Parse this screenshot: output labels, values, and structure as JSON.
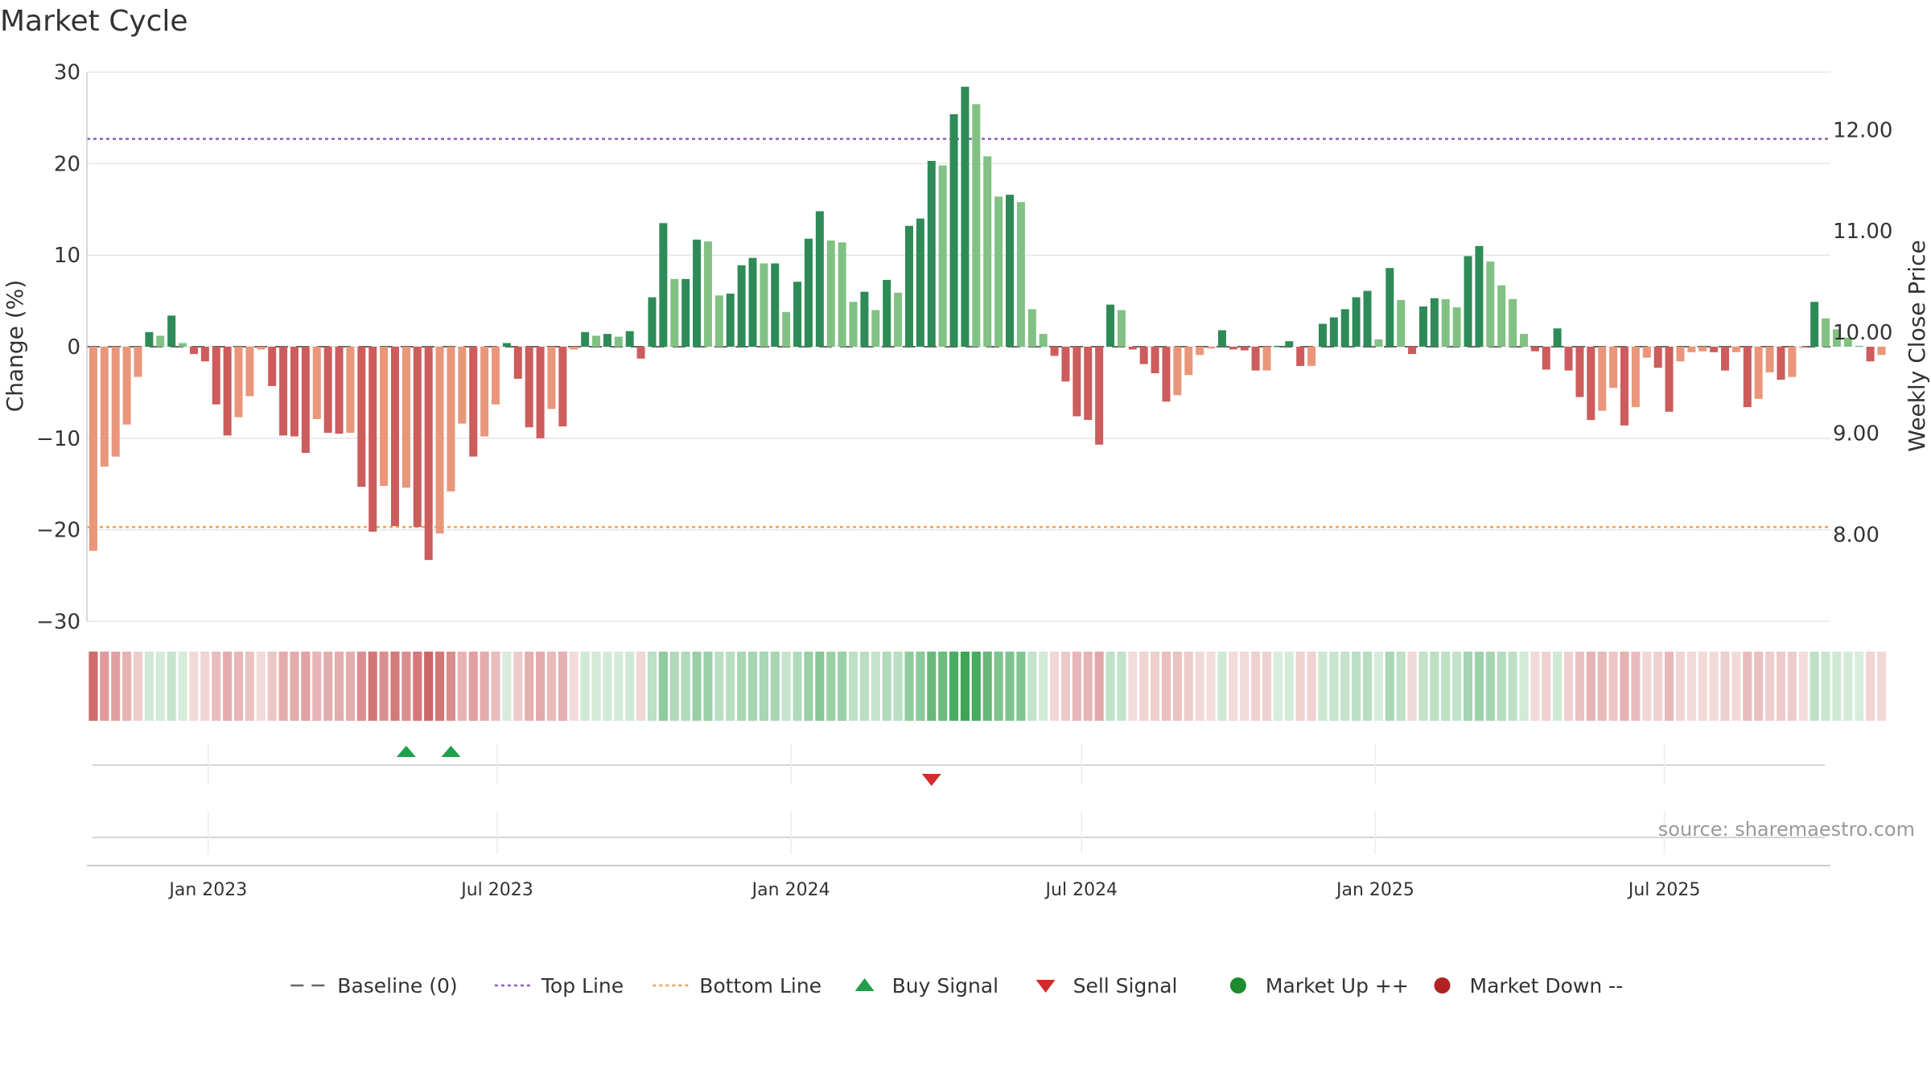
{
  "chart_data": {
    "type": "bar",
    "title": "Market Cycle",
    "ylabel": "Change (%)",
    "y2label": "Weekly Close Price",
    "ylim": [
      -30,
      30
    ],
    "y2lim": [
      7.14,
      12.57
    ],
    "yticks": [
      30,
      20,
      10,
      0,
      -10,
      -20,
      -30
    ],
    "ytick_labels": [
      "30",
      "20",
      "10",
      "0",
      "−10",
      "−20",
      "−30"
    ],
    "y2ticks": [
      12.0,
      11.0,
      10.0,
      9.0,
      8.0
    ],
    "y2tick_labels": [
      "12.00",
      "11.00",
      "10.00",
      "9.00",
      "8.00"
    ],
    "xlim": [
      "2022-10-17",
      "2025-10-13"
    ],
    "xticks": [
      "2023-01-01",
      "2023-07-01",
      "2024-01-01",
      "2024-07-01",
      "2025-01-01",
      "2025-07-01"
    ],
    "xtick_labels": [
      "Jan 2023",
      "Jul 2023",
      "Jan 2024",
      "Jul 2024",
      "Jan 2025",
      "Jul 2025"
    ],
    "top_line": 22.7,
    "bottom_line": -19.7,
    "grid": true,
    "legend_position": "bottom-center",
    "weeks": {
      "start": "2022-10-21",
      "values": [
        -22.3,
        -13.1,
        -12.0,
        -8.5,
        -3.3,
        1.6,
        1.2,
        3.4,
        0.4,
        -0.8,
        -1.6,
        -6.3,
        -9.7,
        -7.7,
        -5.4,
        -0.3,
        -4.3,
        -9.7,
        -9.8,
        -11.6,
        -7.9,
        -9.4,
        -9.5,
        -9.4,
        -15.3,
        -20.2,
        -15.2,
        -19.6,
        -15.4,
        -19.7,
        -23.3,
        -20.4,
        -15.8,
        -8.4,
        -12.0,
        -9.8,
        -6.3,
        0.4,
        -3.5,
        -8.8,
        -10.0,
        -6.8,
        -8.7,
        -0.3,
        1.6,
        1.2,
        1.4,
        1.1,
        1.7,
        -1.3,
        5.4,
        13.5,
        7.4,
        7.4,
        11.7,
        11.5,
        5.6,
        5.8,
        8.9,
        9.7,
        9.1,
        9.1,
        3.8,
        7.1,
        11.8,
        14.8,
        11.6,
        11.4,
        4.9,
        6.0,
        4.0,
        7.3,
        5.9,
        13.2,
        14.0,
        20.3,
        19.8,
        25.4,
        28.4,
        26.5,
        20.8,
        16.4,
        16.6,
        15.8,
        4.1,
        1.4,
        -1.0,
        -3.8,
        -7.6,
        -8.0,
        -10.7,
        4.6,
        4.0,
        -0.3,
        -1.9,
        -2.9,
        -6.0,
        -5.3,
        -3.1,
        -0.9,
        -0.2,
        1.8,
        -0.3,
        -0.4,
        -2.6,
        -2.6,
        0.1,
        0.6,
        -2.1,
        -2.1,
        2.5,
        3.2,
        4.1,
        5.4,
        6.1,
        0.8,
        8.6,
        5.1,
        -0.8,
        4.4,
        5.3,
        5.2,
        4.3,
        9.9,
        11.0,
        9.3,
        6.7,
        5.2,
        1.4,
        -0.5,
        -2.5,
        2.0,
        -2.6,
        -5.5,
        -8.0,
        -7.0,
        -4.5,
        -8.6,
        -6.6,
        -1.2,
        -2.3,
        -7.1,
        -1.6,
        -0.6,
        -0.5,
        -0.6,
        -2.6,
        -0.6,
        -6.6,
        -5.7,
        -2.8,
        -3.6,
        -3.3,
        -0.1,
        4.9,
        3.1,
        1.9,
        1.0,
        0.1,
        -1.6,
        -0.9
      ]
    },
    "signals": {
      "buy": [
        "2023-05-05",
        "2023-06-02"
      ],
      "sell": [
        "2024-03-29"
      ]
    },
    "annotation": "source: sharemaestro.com",
    "legend": [
      {
        "label": "Baseline (0)",
        "marker": "dash",
        "color": "#666666"
      },
      {
        "label": "Top Line",
        "marker": "dotted",
        "color": "#8e5bc4"
      },
      {
        "label": "Bottom Line",
        "marker": "dotted",
        "color": "#f0a25a"
      },
      {
        "label": "Buy Signal",
        "marker": "triangle-up",
        "color": "#1fa04a"
      },
      {
        "label": "Sell Signal",
        "marker": "triangle-down",
        "color": "#d22b2b"
      },
      {
        "label": "Market Up ++",
        "marker": "circle",
        "color": "#1e8b2e"
      },
      {
        "label": "Market Down --",
        "marker": "circle",
        "color": "#b22222"
      }
    ],
    "colors": {
      "up_strong": "#2e8b57",
      "up_light": "#82c184",
      "down_strong": "#cd5c5c",
      "down_light": "#e9967a",
      "top_line": "#8e5bc4",
      "bottom_line": "#f0a25a",
      "baseline": "#666666",
      "grid": "#e6e6e6",
      "axis": "#cccccc"
    }
  }
}
